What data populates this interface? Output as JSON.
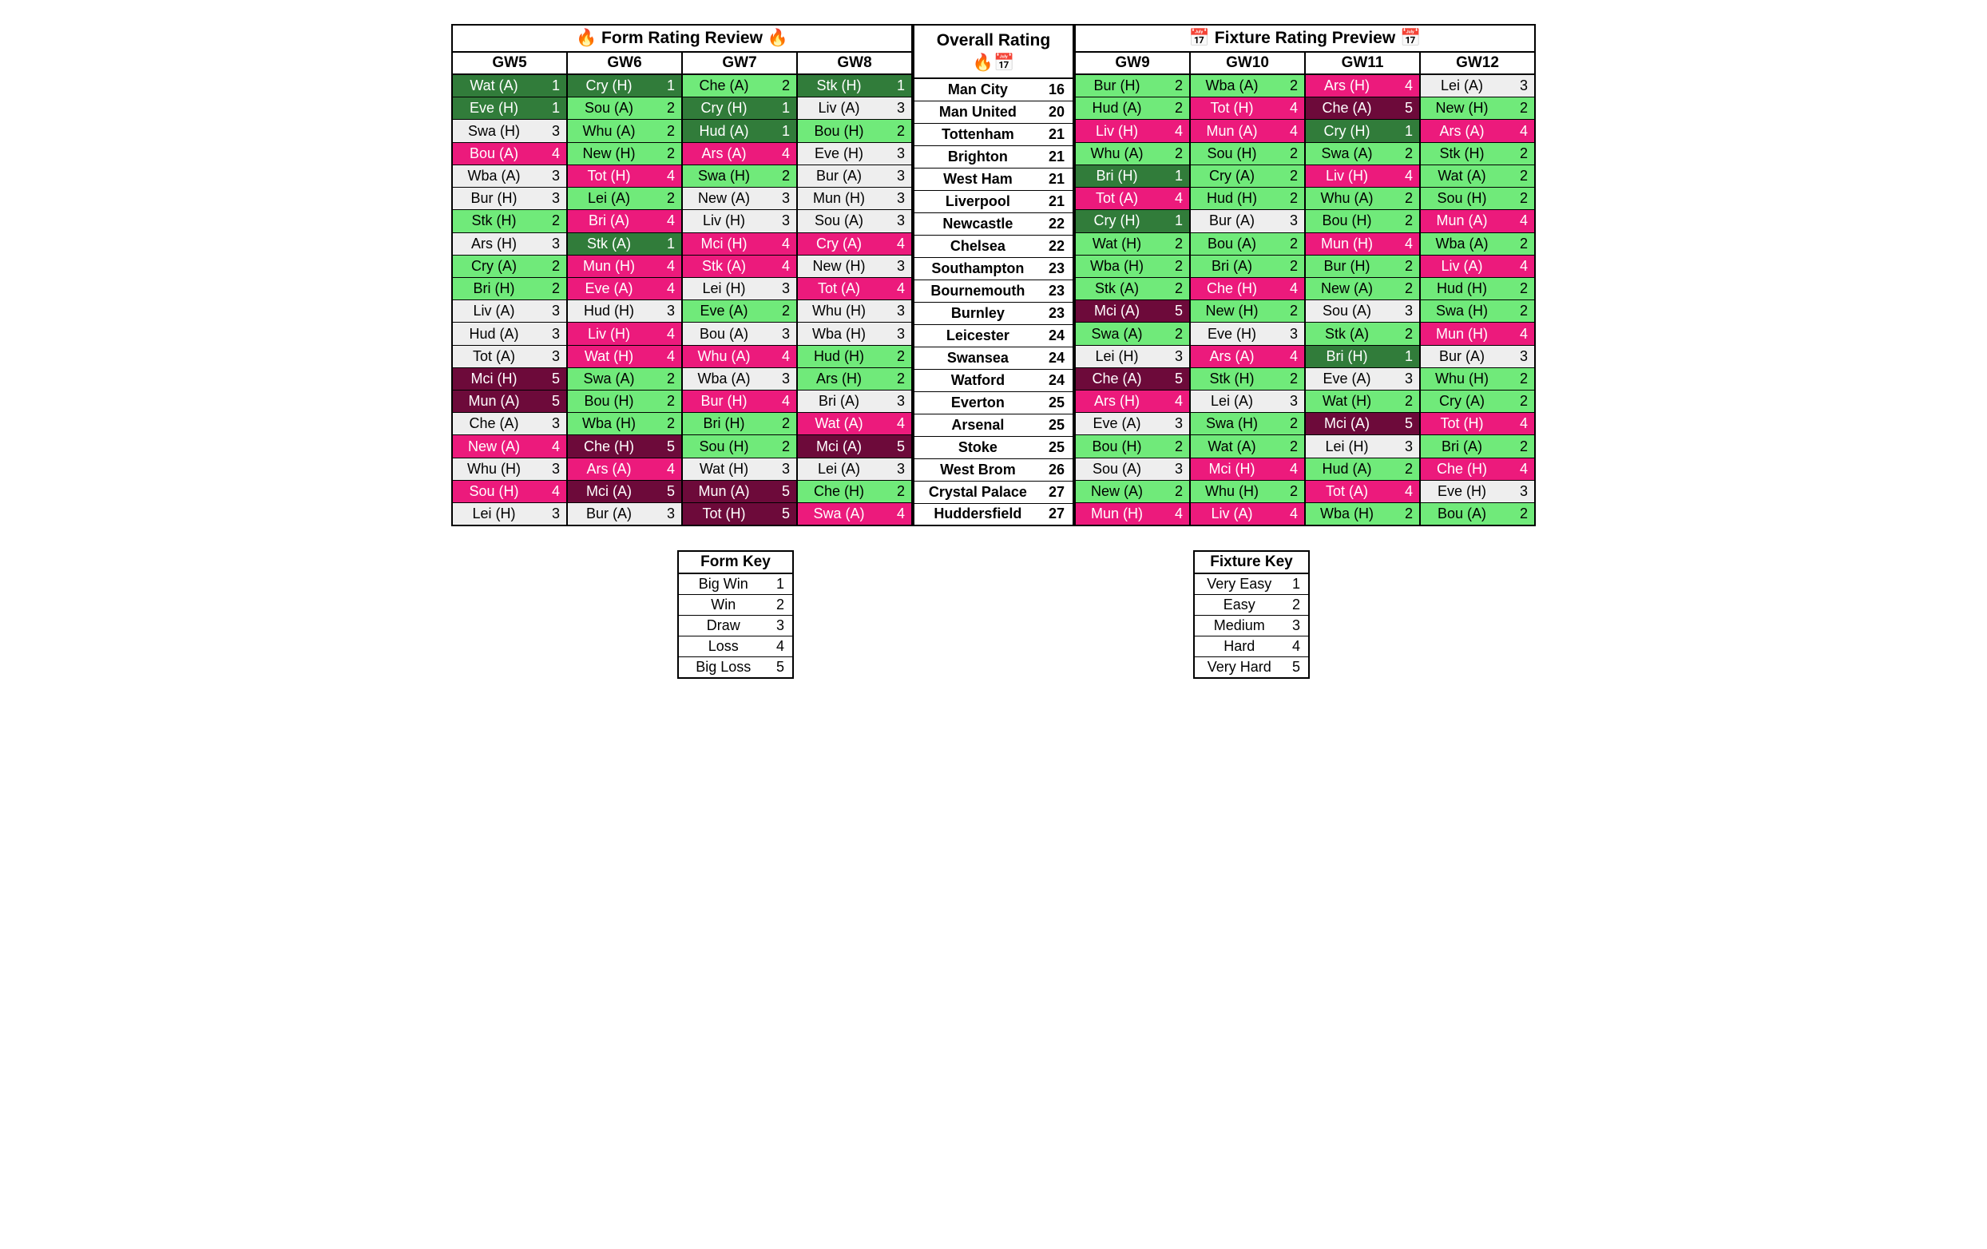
{
  "colors": {
    "1": "#317c3a",
    "2": "#70ea7a",
    "3": "#eeeeee",
    "4": "#ec1a7c",
    "5": "#6d0a3a"
  },
  "form_section": {
    "title": "🔥 Form Rating Review 🔥",
    "gw_headers": [
      "GW5",
      "GW6",
      "GW7",
      "GW8"
    ]
  },
  "fixture_section": {
    "title": "📅 Fixture Rating Preview 📅",
    "gw_headers": [
      "GW9",
      "GW10",
      "GW11",
      "GW12"
    ]
  },
  "overall_header": "Overall Rating\n🔥📅",
  "teams": [
    {
      "name": "Man City",
      "score": 16,
      "form": [
        {
          "t": "Wat (A)",
          "r": 1
        },
        {
          "t": "Cry (H)",
          "r": 1
        },
        {
          "t": "Che (A)",
          "r": 2
        },
        {
          "t": "Stk (H)",
          "r": 1
        }
      ],
      "fix": [
        {
          "t": "Bur (H)",
          "r": 2
        },
        {
          "t": "Wba (A)",
          "r": 2
        },
        {
          "t": "Ars (H)",
          "r": 4
        },
        {
          "t": "Lei (A)",
          "r": 3
        }
      ]
    },
    {
      "name": "Man United",
      "score": 20,
      "form": [
        {
          "t": "Eve (H)",
          "r": 1
        },
        {
          "t": "Sou (A)",
          "r": 2
        },
        {
          "t": "Cry (H)",
          "r": 1
        },
        {
          "t": "Liv (A)",
          "r": 3
        }
      ],
      "fix": [
        {
          "t": "Hud (A)",
          "r": 2
        },
        {
          "t": "Tot (H)",
          "r": 4
        },
        {
          "t": "Che (A)",
          "r": 5
        },
        {
          "t": "New (H)",
          "r": 2
        }
      ]
    },
    {
      "name": "Tottenham",
      "score": 21,
      "form": [
        {
          "t": "Swa (H)",
          "r": 3
        },
        {
          "t": "Whu (A)",
          "r": 2
        },
        {
          "t": "Hud (A)",
          "r": 1
        },
        {
          "t": "Bou (H)",
          "r": 2
        }
      ],
      "fix": [
        {
          "t": "Liv (H)",
          "r": 4
        },
        {
          "t": "Mun (A)",
          "r": 4
        },
        {
          "t": "Cry (H)",
          "r": 1
        },
        {
          "t": "Ars (A)",
          "r": 4
        }
      ]
    },
    {
      "name": "Brighton",
      "score": 21,
      "form": [
        {
          "t": "Bou (A)",
          "r": 4
        },
        {
          "t": "New (H)",
          "r": 2
        },
        {
          "t": "Ars (A)",
          "r": 4
        },
        {
          "t": "Eve (H)",
          "r": 3
        }
      ],
      "fix": [
        {
          "t": "Whu (A)",
          "r": 2
        },
        {
          "t": "Sou (H)",
          "r": 2
        },
        {
          "t": "Swa (A)",
          "r": 2
        },
        {
          "t": "Stk (H)",
          "r": 2
        }
      ]
    },
    {
      "name": "West Ham",
      "score": 21,
      "form": [
        {
          "t": "Wba (A)",
          "r": 3
        },
        {
          "t": "Tot (H)",
          "r": 4
        },
        {
          "t": "Swa (H)",
          "r": 2
        },
        {
          "t": "Bur (A)",
          "r": 3
        }
      ],
      "fix": [
        {
          "t": "Bri (H)",
          "r": 1
        },
        {
          "t": "Cry (A)",
          "r": 2
        },
        {
          "t": "Liv (H)",
          "r": 4
        },
        {
          "t": "Wat (A)",
          "r": 2
        }
      ]
    },
    {
      "name": "Liverpool",
      "score": 21,
      "form": [
        {
          "t": "Bur (H)",
          "r": 3
        },
        {
          "t": "Lei (A)",
          "r": 2
        },
        {
          "t": "New (A)",
          "r": 3
        },
        {
          "t": "Mun (H)",
          "r": 3
        }
      ],
      "fix": [
        {
          "t": "Tot (A)",
          "r": 4
        },
        {
          "t": "Hud (H)",
          "r": 2
        },
        {
          "t": "Whu (A)",
          "r": 2
        },
        {
          "t": "Sou (H)",
          "r": 2
        }
      ]
    },
    {
      "name": "Newcastle",
      "score": 22,
      "form": [
        {
          "t": "Stk (H)",
          "r": 2
        },
        {
          "t": "Bri (A)",
          "r": 4
        },
        {
          "t": "Liv (H)",
          "r": 3
        },
        {
          "t": "Sou (A)",
          "r": 3
        }
      ],
      "fix": [
        {
          "t": "Cry (H)",
          "r": 1
        },
        {
          "t": "Bur (A)",
          "r": 3
        },
        {
          "t": "Bou (H)",
          "r": 2
        },
        {
          "t": "Mun (A)",
          "r": 4
        }
      ]
    },
    {
      "name": "Chelsea",
      "score": 22,
      "form": [
        {
          "t": "Ars (H)",
          "r": 3
        },
        {
          "t": "Stk (A)",
          "r": 1
        },
        {
          "t": "Mci (H)",
          "r": 4
        },
        {
          "t": "Cry (A)",
          "r": 4
        }
      ],
      "fix": [
        {
          "t": "Wat (H)",
          "r": 2
        },
        {
          "t": "Bou (A)",
          "r": 2
        },
        {
          "t": "Mun (H)",
          "r": 4
        },
        {
          "t": "Wba (A)",
          "r": 2
        }
      ]
    },
    {
      "name": "Southampton",
      "score": 23,
      "form": [
        {
          "t": "Cry (A)",
          "r": 2
        },
        {
          "t": "Mun (H)",
          "r": 4
        },
        {
          "t": "Stk (A)",
          "r": 4
        },
        {
          "t": "New (H)",
          "r": 3
        }
      ],
      "fix": [
        {
          "t": "Wba (H)",
          "r": 2
        },
        {
          "t": "Bri (A)",
          "r": 2
        },
        {
          "t": "Bur (H)",
          "r": 2
        },
        {
          "t": "Liv (A)",
          "r": 4
        }
      ]
    },
    {
      "name": "Bournemouth",
      "score": 23,
      "form": [
        {
          "t": "Bri (H)",
          "r": 2
        },
        {
          "t": "Eve (A)",
          "r": 4
        },
        {
          "t": "Lei (H)",
          "r": 3
        },
        {
          "t": "Tot (A)",
          "r": 4
        }
      ],
      "fix": [
        {
          "t": "Stk (A)",
          "r": 2
        },
        {
          "t": "Che (H)",
          "r": 4
        },
        {
          "t": "New (A)",
          "r": 2
        },
        {
          "t": "Hud (H)",
          "r": 2
        }
      ]
    },
    {
      "name": "Burnley",
      "score": 23,
      "form": [
        {
          "t": "Liv (A)",
          "r": 3
        },
        {
          "t": "Hud (H)",
          "r": 3
        },
        {
          "t": "Eve (A)",
          "r": 2
        },
        {
          "t": "Whu (H)",
          "r": 3
        }
      ],
      "fix": [
        {
          "t": "Mci (A)",
          "r": 5
        },
        {
          "t": "New (H)",
          "r": 2
        },
        {
          "t": "Sou (A)",
          "r": 3
        },
        {
          "t": "Swa (H)",
          "r": 2
        }
      ]
    },
    {
      "name": "Leicester",
      "score": 24,
      "form": [
        {
          "t": "Hud (A)",
          "r": 3
        },
        {
          "t": "Liv (H)",
          "r": 4
        },
        {
          "t": "Bou (A)",
          "r": 3
        },
        {
          "t": "Wba (H)",
          "r": 3
        }
      ],
      "fix": [
        {
          "t": "Swa (A)",
          "r": 2
        },
        {
          "t": "Eve (H)",
          "r": 3
        },
        {
          "t": "Stk (A)",
          "r": 2
        },
        {
          "t": "Mun (H)",
          "r": 4
        }
      ]
    },
    {
      "name": "Swansea",
      "score": 24,
      "form": [
        {
          "t": "Tot (A)",
          "r": 3
        },
        {
          "t": "Wat (H)",
          "r": 4
        },
        {
          "t": "Whu (A)",
          "r": 4
        },
        {
          "t": "Hud (H)",
          "r": 2
        }
      ],
      "fix": [
        {
          "t": "Lei (H)",
          "r": 3
        },
        {
          "t": "Ars (A)",
          "r": 4
        },
        {
          "t": "Bri (H)",
          "r": 1
        },
        {
          "t": "Bur (A)",
          "r": 3
        }
      ]
    },
    {
      "name": "Watford",
      "score": 24,
      "form": [
        {
          "t": "Mci (H)",
          "r": 5
        },
        {
          "t": "Swa (A)",
          "r": 2
        },
        {
          "t": "Wba (A)",
          "r": 3
        },
        {
          "t": "Ars (H)",
          "r": 2
        }
      ],
      "fix": [
        {
          "t": "Che (A)",
          "r": 5
        },
        {
          "t": "Stk (H)",
          "r": 2
        },
        {
          "t": "Eve (A)",
          "r": 3
        },
        {
          "t": "Whu (H)",
          "r": 2
        }
      ]
    },
    {
      "name": "Everton",
      "score": 25,
      "form": [
        {
          "t": "Mun (A)",
          "r": 5
        },
        {
          "t": "Bou (H)",
          "r": 2
        },
        {
          "t": "Bur (H)",
          "r": 4
        },
        {
          "t": "Bri (A)",
          "r": 3
        }
      ],
      "fix": [
        {
          "t": "Ars (H)",
          "r": 4
        },
        {
          "t": "Lei (A)",
          "r": 3
        },
        {
          "t": "Wat (H)",
          "r": 2
        },
        {
          "t": "Cry (A)",
          "r": 2
        }
      ]
    },
    {
      "name": "Arsenal",
      "score": 25,
      "form": [
        {
          "t": "Che (A)",
          "r": 3
        },
        {
          "t": "Wba (H)",
          "r": 2
        },
        {
          "t": "Bri (H)",
          "r": 2
        },
        {
          "t": "Wat (A)",
          "r": 4
        }
      ],
      "fix": [
        {
          "t": "Eve (A)",
          "r": 3
        },
        {
          "t": "Swa (H)",
          "r": 2
        },
        {
          "t": "Mci (A)",
          "r": 5
        },
        {
          "t": "Tot (H)",
          "r": 4
        }
      ]
    },
    {
      "name": "Stoke",
      "score": 25,
      "form": [
        {
          "t": "New (A)",
          "r": 4
        },
        {
          "t": "Che (H)",
          "r": 5
        },
        {
          "t": "Sou (H)",
          "r": 2
        },
        {
          "t": "Mci (A)",
          "r": 5
        }
      ],
      "fix": [
        {
          "t": "Bou (H)",
          "r": 2
        },
        {
          "t": "Wat (A)",
          "r": 2
        },
        {
          "t": "Lei (H)",
          "r": 3
        },
        {
          "t": "Bri (A)",
          "r": 2
        }
      ]
    },
    {
      "name": "West Brom",
      "score": 26,
      "form": [
        {
          "t": "Whu (H)",
          "r": 3
        },
        {
          "t": "Ars (A)",
          "r": 4
        },
        {
          "t": "Wat (H)",
          "r": 3
        },
        {
          "t": "Lei (A)",
          "r": 3
        }
      ],
      "fix": [
        {
          "t": "Sou (A)",
          "r": 3
        },
        {
          "t": "Mci (H)",
          "r": 4
        },
        {
          "t": "Hud (A)",
          "r": 2
        },
        {
          "t": "Che (H)",
          "r": 4
        }
      ]
    },
    {
      "name": "Crystal Palace",
      "score": 27,
      "form": [
        {
          "t": "Sou (H)",
          "r": 4
        },
        {
          "t": "Mci (A)",
          "r": 5
        },
        {
          "t": "Mun (A)",
          "r": 5
        },
        {
          "t": "Che (H)",
          "r": 2
        }
      ],
      "fix": [
        {
          "t": "New (A)",
          "r": 2
        },
        {
          "t": "Whu (H)",
          "r": 2
        },
        {
          "t": "Tot (A)",
          "r": 4
        },
        {
          "t": "Eve (H)",
          "r": 3
        }
      ]
    },
    {
      "name": "Huddersfield",
      "score": 27,
      "form": [
        {
          "t": "Lei (H)",
          "r": 3
        },
        {
          "t": "Bur (A)",
          "r": 3
        },
        {
          "t": "Tot (H)",
          "r": 5
        },
        {
          "t": "Swa (A)",
          "r": 4
        }
      ],
      "fix": [
        {
          "t": "Mun (H)",
          "r": 4
        },
        {
          "t": "Liv (A)",
          "r": 4
        },
        {
          "t": "Wba (H)",
          "r": 2
        },
        {
          "t": "Bou (A)",
          "r": 2
        }
      ]
    }
  ],
  "form_key": {
    "title": "Form Key",
    "items": [
      {
        "label": "Big Win",
        "r": 1
      },
      {
        "label": "Win",
        "r": 2
      },
      {
        "label": "Draw",
        "r": 3
      },
      {
        "label": "Loss",
        "r": 4
      },
      {
        "label": "Big Loss",
        "r": 5
      }
    ]
  },
  "fixture_key": {
    "title": "Fixture Key",
    "items": [
      {
        "label": "Very Easy",
        "r": 1
      },
      {
        "label": "Easy",
        "r": 2
      },
      {
        "label": "Medium",
        "r": 3
      },
      {
        "label": "Hard",
        "r": 4
      },
      {
        "label": "Very Hard",
        "r": 5
      }
    ]
  }
}
